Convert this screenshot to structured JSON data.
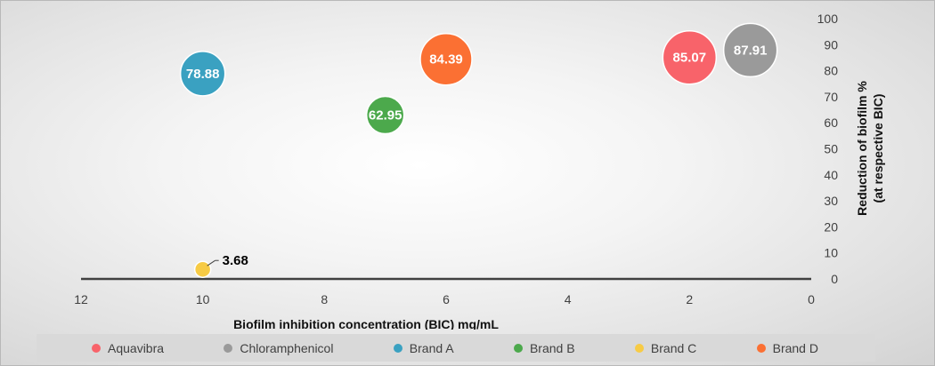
{
  "chart_data": {
    "type": "bubble",
    "xlabel": "Biofilm inhibition concentration (BIC) mg/mL",
    "ylabel_line1": "Reduction of biofilm %",
    "ylabel_line2": "(at respective BIC)",
    "xlim": [
      12,
      0
    ],
    "x_reversed": true,
    "ylim": [
      0,
      100
    ],
    "x_ticks": [
      "12",
      "10",
      "8",
      "6",
      "4",
      "2",
      "0"
    ],
    "y_ticks": [
      "100",
      "90",
      "80",
      "70",
      "60",
      "50",
      "40",
      "30",
      "20",
      "10",
      "0"
    ],
    "legend_position": "bottom",
    "series": [
      {
        "name": "Aquavibra",
        "x": 2,
        "y": 85.07,
        "label": "85.07",
        "color": "#f8636a"
      },
      {
        "name": "Chloramphenicol",
        "x": 1,
        "y": 87.91,
        "label": "87.91",
        "color": "#9a9a9a"
      },
      {
        "name": "Brand A",
        "x": 10,
        "y": 78.88,
        "label": "78.88",
        "color": "#3aa1c1"
      },
      {
        "name": "Brand B",
        "x": 7,
        "y": 62.95,
        "label": "62.95",
        "color": "#4ca94c"
      },
      {
        "name": "Brand C",
        "x": 10,
        "y": 3.68,
        "label": "3.68",
        "color": "#f7cb45"
      },
      {
        "name": "Brand D",
        "x": 6,
        "y": 84.39,
        "label": "84.39",
        "color": "#fb7033"
      }
    ]
  }
}
